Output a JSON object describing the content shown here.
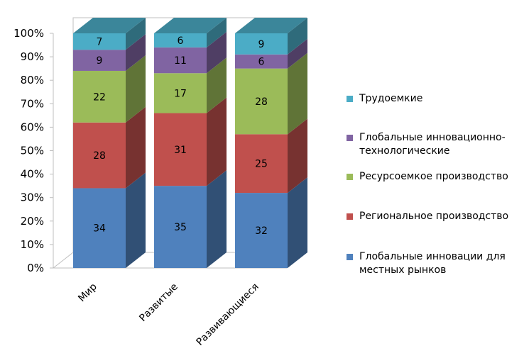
{
  "chart_data": {
    "type": "bar",
    "stacked": true,
    "percent": true,
    "three_d": true,
    "categories": [
      "Мир",
      "Развитые",
      "Развивающиеся"
    ],
    "series": [
      {
        "name": "Глобальные инновации для местных рынков",
        "values": [
          34,
          35,
          32
        ],
        "color": "#4f81bd"
      },
      {
        "name": "Региональное производство",
        "values": [
          28,
          31,
          25
        ],
        "color": "#c0504d"
      },
      {
        "name": "Ресурсоемкое производство",
        "values": [
          22,
          17,
          28
        ],
        "color": "#9bbb59"
      },
      {
        "name": "Глобальные инновационно-технологические",
        "values": [
          9,
          11,
          6
        ],
        "color": "#8064a2"
      },
      {
        "name": "Трудоемкие",
        "values": [
          7,
          6,
          9
        ],
        "color": "#4bacc6"
      }
    ],
    "y_ticks": [
      "0%",
      "10%",
      "20%",
      "30%",
      "40%",
      "50%",
      "60%",
      "70%",
      "80%",
      "90%",
      "100%"
    ],
    "ylim": [
      0,
      100
    ],
    "grid": false,
    "legend_position": "right"
  }
}
